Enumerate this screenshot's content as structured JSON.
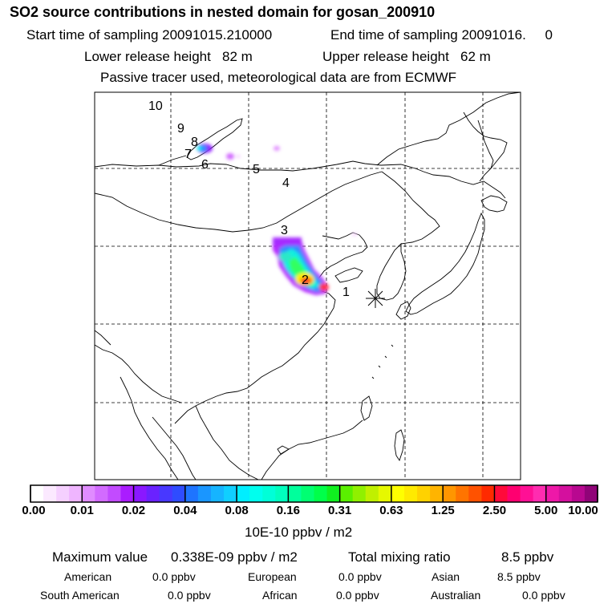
{
  "header": {
    "title": "SO2 source contributions in nested domain for gosan_200910",
    "start_sampling": "Start time of sampling 20091015.210000",
    "end_sampling": "End time of sampling 20091016.     0",
    "lower_release": "Lower release height   82 m",
    "upper_release": "Upper release height   62 m",
    "tracer_note": "Passive tracer used, meteorological data are from ECMWF"
  },
  "chart_data": {
    "type": "heatmap",
    "title": "SO2 source contributions in nested domain for gosan_200910",
    "colorbar": {
      "ticks": [
        "0.00",
        "0.01",
        "0.02",
        "0.04",
        "0.08",
        "0.16",
        "0.31",
        "0.63",
        "1.25",
        "2.50",
        "5.00",
        "10.00"
      ],
      "units": "10E-10 ppbv / m2",
      "colors": [
        "#ffffff",
        "#fbe9ff",
        "#f5d0ff",
        "#efb5ff",
        "#e08cff",
        "#d26bff",
        "#c24bff",
        "#aa1cff",
        "#8a18ff",
        "#6a22ff",
        "#4838ff",
        "#2f4cff",
        "#1e74ff",
        "#1a96ff",
        "#16b4ff",
        "#10cfff",
        "#00eeff",
        "#00ffee",
        "#00ffd8",
        "#00ffbe",
        "#00ff9c",
        "#00ff72",
        "#00ff4a",
        "#10f020",
        "#5af000",
        "#90f000",
        "#c0f000",
        "#e6f800",
        "#ffff00",
        "#ffea00",
        "#ffd200",
        "#ffb400",
        "#ff9600",
        "#ff7400",
        "#ff5200",
        "#ff2a00",
        "#ff0a3a",
        "#ff0070",
        "#ff1095",
        "#ff2cb0",
        "#ee18a8",
        "#d4109e",
        "#b80890",
        "#900478"
      ]
    },
    "site_labels": [
      "1",
      "2",
      "3",
      "4",
      "5",
      "6",
      "7",
      "8",
      "9",
      "10"
    ],
    "receptor_marker": "Gosan (asterisk)",
    "max_value_label": "Maximum value",
    "max_value": "0.338E-09 ppbv / m2",
    "total_mixing_label": "Total mixing ratio",
    "total_mixing_value": "8.5 ppbv",
    "regions": [
      {
        "name": "American",
        "value": "0.0 ppbv"
      },
      {
        "name": "European",
        "value": "0.0 ppbv"
      },
      {
        "name": "Asian",
        "value": "8.5 ppbv"
      },
      {
        "name": "South American",
        "value": "0.0 ppbv"
      },
      {
        "name": "African",
        "value": "0.0 ppbv"
      },
      {
        "name": "Australian",
        "value": "0.0 ppbv"
      }
    ],
    "plumes": [
      {
        "lat_index": 3,
        "level": "0.02-0.16"
      },
      {
        "lat_index": 2,
        "level": "1.25-5.00"
      },
      {
        "lat_index": 8,
        "level": "0.04-0.08"
      }
    ]
  }
}
